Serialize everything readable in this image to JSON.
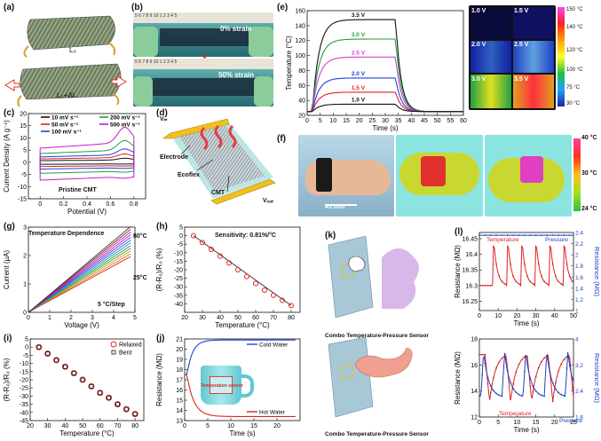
{
  "panels": {
    "a": {
      "label": "(a)",
      "l0": "L₀",
      "l1": "L₀+ΔL"
    },
    "b": {
      "label": "(b)",
      "strain0": "0% strain",
      "strain50": "50% strain",
      "ruler": "5 6 7 8 9 10 1 2 3 4 5"
    },
    "c": {
      "label": "(c)",
      "annotation": "Pristine CMT"
    },
    "d": {
      "label": "(d)",
      "vin": "Vᵢₙ",
      "vout": "Vₒᵤₜ",
      "electrode": "Electrode",
      "ecoflex": "Ecoflex",
      "cmt": "CMT"
    },
    "e": {
      "label": "(e)",
      "thermal_labels": [
        "1.0 V",
        "1.5 V",
        "2.0 V",
        "2.5 V",
        "3.0 V",
        "3.5 V"
      ],
      "colorbar": [
        "150 °C",
        "140 °C",
        "120 °C",
        "100 °C",
        "75 °C",
        "30 °C"
      ]
    },
    "f": {
      "label": "(f)",
      "scale": "45 mm",
      "colorbar": [
        "40 °C",
        "30 °C",
        "24 °C"
      ]
    },
    "g": {
      "label": "(g)",
      "title": "Temperature Dependence",
      "top": "80°C",
      "bottom": "25°C",
      "step": "5 °C/Step"
    },
    "h": {
      "label": "(h)",
      "sensitivity": "Sensitivity: 0.81%/°C"
    },
    "i": {
      "label": "(i)"
    },
    "j": {
      "label": "(j)",
      "sensor": "Temperature sensor"
    },
    "k": {
      "label": "(k)",
      "caption1": "Combo Temperature-Pressure Sensor",
      "caption2": "Combo Temperature-Pressure Sensor"
    },
    "l": {
      "label": "(l)"
    }
  },
  "chart_data": [
    {
      "id": "c",
      "type": "line",
      "xlabel": "Potential (V)",
      "ylabel": "Current Density (A g⁻¹)",
      "xlim": [
        -0.1,
        0.9
      ],
      "ylim": [
        -15,
        20
      ],
      "xticks": [
        0.0,
        0.2,
        0.4,
        0.6,
        0.8
      ],
      "yticks": [
        -15,
        -10,
        -5,
        0,
        5,
        10,
        15,
        20
      ],
      "legend_position": "top",
      "series": [
        {
          "name": "10 mV s⁻¹",
          "color": "#111111",
          "amp": 1.2
        },
        {
          "name": "50 mV s⁻¹",
          "color": "#e02020",
          "amp": 2.5
        },
        {
          "name": "100 mV s⁻¹",
          "color": "#2040e0",
          "amp": 4.0
        },
        {
          "name": "200 mV s⁻¹",
          "color": "#20a040",
          "amp": 6.5
        },
        {
          "name": "500 mV s⁻¹",
          "color": "#c020c0",
          "amp": 10.5
        }
      ]
    },
    {
      "id": "e",
      "type": "line",
      "xlabel": "Time (s)",
      "ylabel": "Temperature (°C)",
      "xlim": [
        0,
        60
      ],
      "ylim": [
        20,
        160
      ],
      "xticks": [
        0,
        5,
        10,
        15,
        20,
        25,
        30,
        35,
        40,
        45,
        50,
        55,
        60
      ],
      "yticks": [
        20,
        40,
        60,
        80,
        100,
        120,
        140,
        160
      ],
      "series": [
        {
          "name": "3.5 V",
          "color": "#111111",
          "plateau": 148
        },
        {
          "name": "3.0 V",
          "color": "#20a040",
          "plateau": 122
        },
        {
          "name": "2.5 V",
          "color": "#d040d0",
          "plateau": 98
        },
        {
          "name": "2.0 V",
          "color": "#2040e0",
          "plateau": 70
        },
        {
          "name": "1.5 V",
          "color": "#e02020",
          "plateau": 51
        },
        {
          "name": "1.0 V",
          "color": "#111111",
          "plateau": 35
        }
      ]
    },
    {
      "id": "g",
      "type": "line",
      "xlabel": "Voltage (V)",
      "ylabel": "Current (µA)",
      "xlim": [
        0,
        5
      ],
      "ylim": [
        0,
        3
      ],
      "xticks": [
        0,
        1,
        2,
        3,
        4,
        5
      ],
      "yticks": [
        0,
        1,
        2,
        3
      ],
      "slopes": [
        0.41,
        0.43,
        0.45,
        0.47,
        0.49,
        0.51,
        0.53,
        0.55,
        0.57,
        0.59,
        0.61,
        0.63
      ]
    },
    {
      "id": "h",
      "type": "scatter",
      "xlabel": "Temperature (°C)",
      "ylabel": "(R-R₀)/R₀ (%)",
      "xlim": [
        20,
        85
      ],
      "ylim": [
        -45,
        5
      ],
      "xticks": [
        20,
        30,
        40,
        50,
        60,
        70,
        80
      ],
      "yticks": [
        -40,
        -35,
        -30,
        -25,
        -20,
        -15,
        -10,
        -5,
        0,
        5
      ],
      "x": [
        25,
        30,
        35,
        40,
        45,
        50,
        55,
        60,
        65,
        70,
        75,
        80
      ],
      "y": [
        0,
        -4,
        -8,
        -12,
        -16,
        -20,
        -24,
        -28,
        -32,
        -35,
        -38,
        -41
      ]
    },
    {
      "id": "i",
      "type": "scatter",
      "xlabel": "Temperature (°C)",
      "ylabel": "(R-R₀)/R₀ (%)",
      "xlim": [
        20,
        85
      ],
      "ylim": [
        -45,
        5
      ],
      "xticks": [
        20,
        30,
        40,
        50,
        60,
        70,
        80
      ],
      "yticks": [
        -45,
        -40,
        -35,
        -30,
        -25,
        -20,
        -15,
        -10,
        -5,
        0,
        5
      ],
      "x": [
        25,
        30,
        35,
        40,
        45,
        50,
        55,
        60,
        65,
        70,
        75,
        80
      ],
      "series": [
        {
          "name": "Relaxed",
          "y": [
            0,
            -4,
            -8,
            -12,
            -16,
            -20,
            -24,
            -28,
            -31,
            -35,
            -38,
            -41
          ]
        },
        {
          "name": "Bent",
          "y": [
            0,
            -4,
            -8,
            -12,
            -16,
            -20,
            -24,
            -28,
            -31,
            -35,
            -38,
            -41
          ]
        }
      ]
    },
    {
      "id": "j",
      "type": "line",
      "xlabel": "Time (s)",
      "ylabel": "Resistance (MΩ)",
      "xlim": [
        0,
        25
      ],
      "ylim": [
        13,
        21
      ],
      "xticks": [
        0,
        5,
        10,
        15,
        20
      ],
      "yticks": [
        13,
        14,
        15,
        16,
        17,
        18,
        19,
        20,
        21
      ],
      "series": [
        {
          "name": "Cold Water",
          "color": "#2040e0"
        },
        {
          "name": "Hot Water",
          "color": "#e02020"
        }
      ]
    },
    {
      "id": "l1",
      "type": "line",
      "xlabel": "Time (s)",
      "ylabel": "Resistance (MΩ)",
      "y2label": "Resistance (MΩ)",
      "xlim": [
        0,
        50
      ],
      "ylim": [
        16.22,
        16.47
      ],
      "y2lim": [
        1.0,
        2.4
      ],
      "xticks": [
        0,
        10,
        20,
        30,
        40,
        50
      ],
      "yticks": [
        16.25,
        16.3,
        16.35,
        16.4,
        16.45
      ],
      "y2ticks": [
        1.0,
        1.2,
        1.4,
        1.6,
        1.8,
        2.0,
        2.2,
        2.4
      ],
      "series": [
        {
          "name": "Temperature",
          "color": "#e02020"
        },
        {
          "name": "Pressure",
          "color": "#2040c0"
        }
      ]
    },
    {
      "id": "l2",
      "type": "line",
      "xlabel": "Time (s)",
      "ylabel": "Resistance (MΩ)",
      "y2label": "Resistance (MΩ)",
      "xlim": [
        0,
        25
      ],
      "ylim": [
        12,
        18
      ],
      "y2lim": [
        1.6,
        4.0
      ],
      "xticks": [
        0,
        5,
        10,
        15,
        20,
        25
      ],
      "yticks": [
        12.0,
        14.0,
        16.0,
        18.0
      ],
      "y2ticks": [
        1.6,
        2.4,
        3.2,
        4.0
      ],
      "series": [
        {
          "name": "Temperature",
          "color": "#e02020"
        },
        {
          "name": "Pressure",
          "color": "#2040c0"
        }
      ]
    }
  ]
}
